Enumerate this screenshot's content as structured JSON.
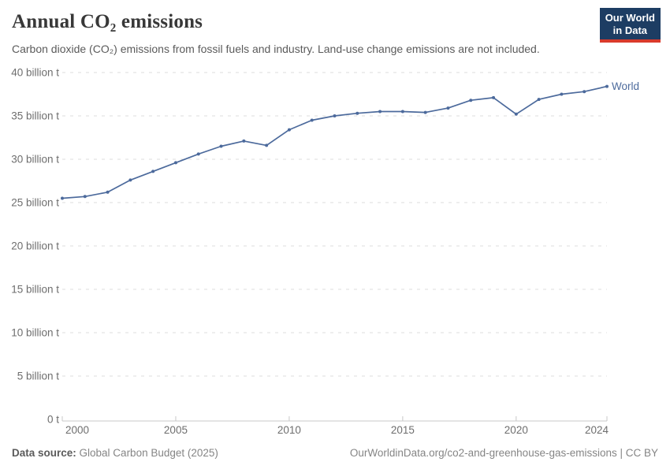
{
  "header": {
    "title": "Annual CO₂ emissions",
    "subtitle": "Carbon dioxide (CO₂) emissions from fossil fuels and industry. Land-use change emissions are not included.",
    "logo": {
      "line1": "Our World",
      "line2": "in Data"
    }
  },
  "chart_data": {
    "type": "line",
    "title": "Annual CO₂ emissions",
    "x": [
      2000,
      2001,
      2002,
      2003,
      2004,
      2005,
      2006,
      2007,
      2008,
      2009,
      2010,
      2011,
      2012,
      2013,
      2014,
      2015,
      2016,
      2017,
      2018,
      2019,
      2020,
      2021,
      2022,
      2023,
      2024
    ],
    "series": [
      {
        "name": "World",
        "values": [
          25.5,
          25.7,
          26.2,
          27.6,
          28.6,
          29.6,
          30.6,
          31.5,
          32.1,
          31.6,
          33.4,
          34.5,
          35.0,
          35.3,
          35.5,
          35.5,
          35.4,
          35.9,
          36.8,
          37.1,
          35.2,
          36.9,
          37.5,
          37.8,
          38.4
        ]
      }
    ],
    "xlabel": "",
    "ylabel": "",
    "ylim": [
      0,
      40
    ],
    "y_ticks": [
      {
        "value": 0,
        "label": "0 t"
      },
      {
        "value": 5,
        "label": "5 billion t"
      },
      {
        "value": 10,
        "label": "10 billion t"
      },
      {
        "value": 15,
        "label": "15 billion t"
      },
      {
        "value": 20,
        "label": "20 billion t"
      },
      {
        "value": 25,
        "label": "25 billion t"
      },
      {
        "value": 30,
        "label": "30 billion t"
      },
      {
        "value": 35,
        "label": "35 billion t"
      },
      {
        "value": 40,
        "label": "40 billion t"
      }
    ],
    "x_ticks": [
      2000,
      2005,
      2010,
      2015,
      2020,
      2024
    ],
    "grid": "horizontal-dashed",
    "legend_position": "end-of-line"
  },
  "footer": {
    "source_label": "Data source:",
    "source_value": " Global Carbon Budget (2025)",
    "link": "OurWorldinData.org/co2-and-greenhouse-gas-emissions | CC BY"
  },
  "colors": {
    "line": "#4c6a9c",
    "series_label": "#4c6a9c",
    "grid": "#dedede",
    "axis": "#c8c8c8",
    "tick_text": "#6e6e6e",
    "title_text": "#383838",
    "subtitle_text": "#5b5b5b",
    "footer_text": "#858585",
    "logo_bg": "#1d3d63",
    "logo_accent": "#d93a2b"
  }
}
